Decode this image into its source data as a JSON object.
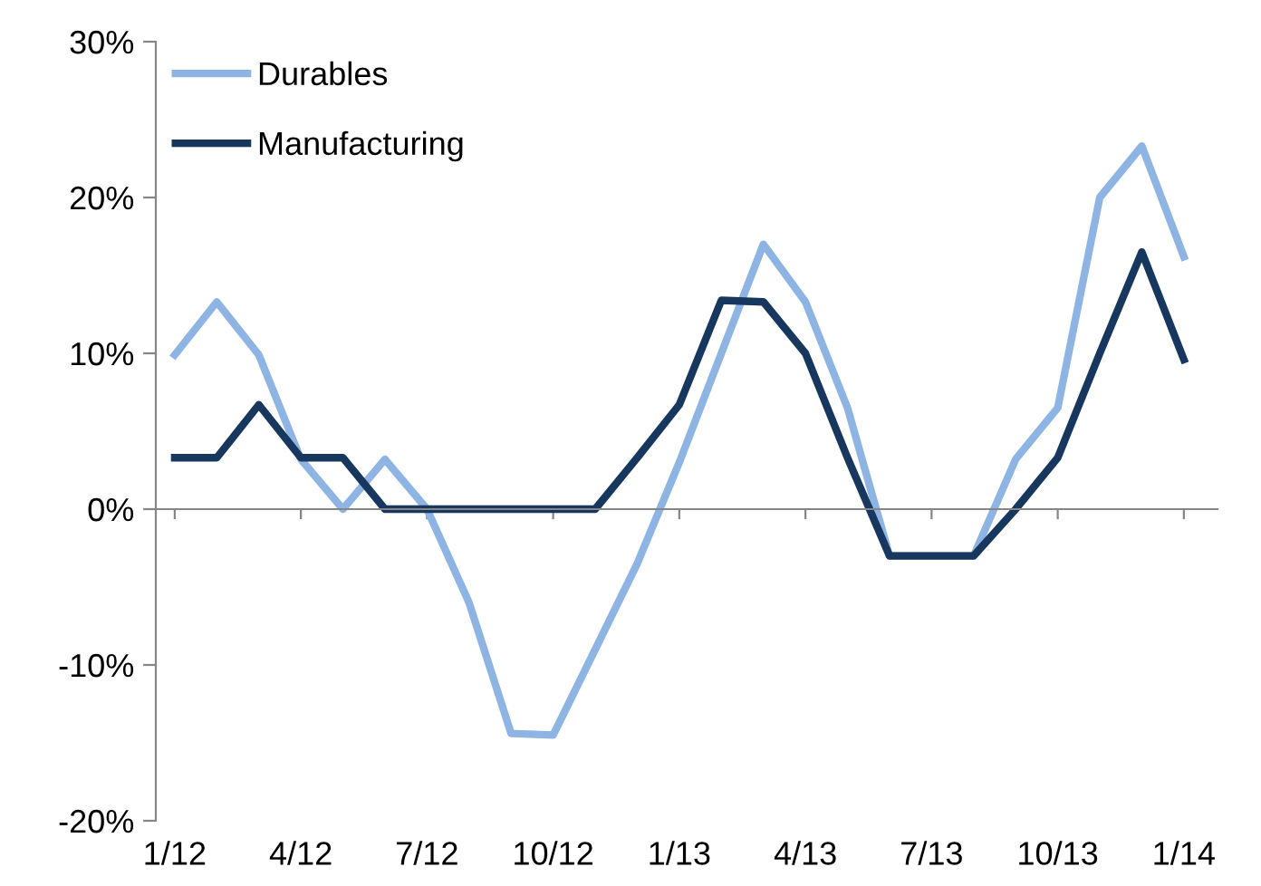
{
  "chart_data": {
    "type": "line",
    "categories": [
      "1/12",
      null,
      null,
      "4/12",
      null,
      null,
      "7/12",
      null,
      null,
      "10/12",
      null,
      null,
      "1/13",
      null,
      null,
      "4/13",
      null,
      null,
      "7/13",
      null,
      null,
      "10/13",
      null,
      null,
      "1/14"
    ],
    "series": [
      {
        "name": "Durables",
        "color": "#8eb4e3",
        "values": [
          9.9,
          13.3,
          9.9,
          3.2,
          0,
          3.2,
          0,
          -6,
          -14.4,
          -14.5,
          -9,
          -3.5,
          3,
          10,
          17,
          13.3,
          6.5,
          -3,
          -3,
          -3,
          3.2,
          6.5,
          20,
          23.3,
          16.2
        ]
      },
      {
        "name": "Manufacturing",
        "color": "#17375e",
        "values": [
          3.3,
          3.3,
          6.7,
          3.3,
          3.3,
          0,
          0,
          0,
          0,
          0,
          0,
          3.3,
          6.7,
          13.4,
          13.3,
          10,
          3.3,
          -3,
          -3,
          -3,
          0,
          3.3,
          10,
          16.5,
          9.6
        ]
      }
    ],
    "ylim": [
      -20,
      30
    ],
    "yticks": [
      {
        "value": -20,
        "label": "-20%"
      },
      {
        "value": -10,
        "label": "-10%"
      },
      {
        "value": 0,
        "label": "0%"
      },
      {
        "value": 10,
        "label": "10%"
      },
      {
        "value": 20,
        "label": "20%"
      },
      {
        "value": 30,
        "label": "30%"
      }
    ],
    "legend": "top left",
    "marker": "none",
    "line_style": "solid"
  }
}
